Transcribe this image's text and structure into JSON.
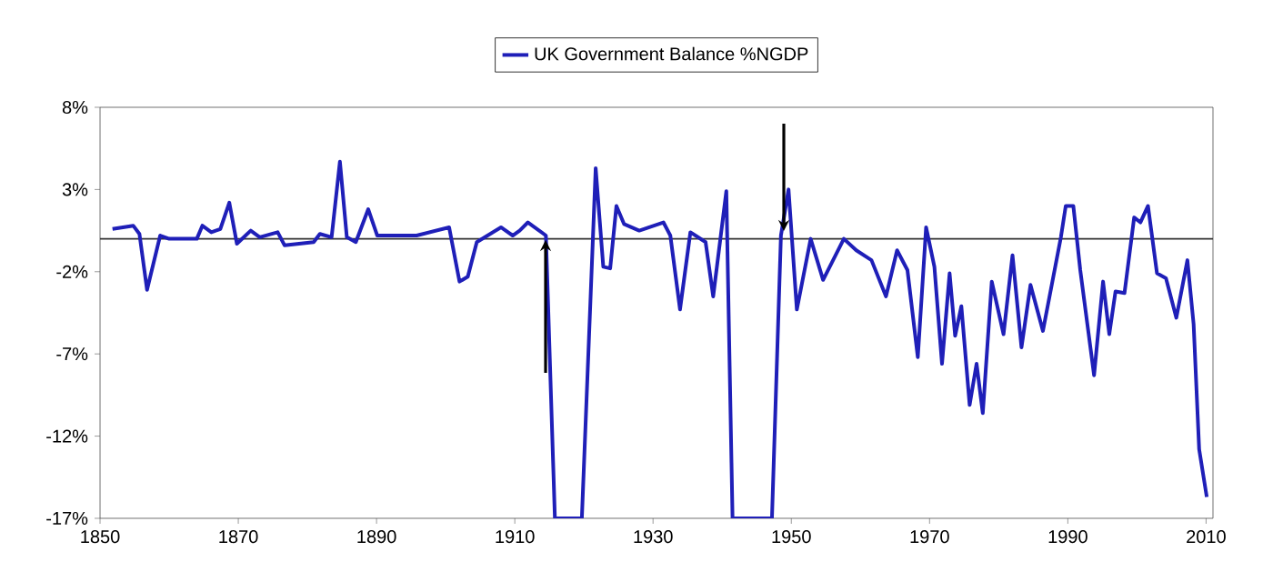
{
  "chart_data": {
    "type": "line",
    "x": [
      1851.8,
      1854.8,
      1855.7,
      1856.8,
      1858.7,
      1860,
      1864,
      1864.8,
      1866.1,
      1867.4,
      1868.7,
      1869.8,
      1871.8,
      1873.1,
      1875.7,
      1876.7,
      1878.8,
      1880.9,
      1881.8,
      1883.5,
      1884.7,
      1885.7,
      1887,
      1888.8,
      1890.1,
      1895.8,
      1900.5,
      1902,
      1903.2,
      1904.5,
      1908,
      1909.7,
      1910.7,
      1911.9,
      1914.5,
      1915.8,
      1919.7,
      1921.7,
      1922.8,
      1923.8,
      1924.7,
      1925.8,
      1928,
      1931.5,
      1932.5,
      1933.9,
      1935.4,
      1937.6,
      1938.7,
      1940.6,
      1941.5,
      1941.9,
      1947.2,
      1948.5,
      1949.6,
      1950.8,
      1952.8,
      1954.6,
      1957.6,
      1959.4,
      1961.6,
      1963.7,
      1965.3,
      1966.8,
      1968.3,
      1969.5,
      1970.7,
      1971.8,
      1972.9,
      1973.7,
      1974.6,
      1975.8,
      1976.8,
      1977.7,
      1979,
      1980.7,
      1982,
      1983.3,
      1984.6,
      1986.4,
      1989,
      1989.7,
      1990.8,
      1991.8,
      1993.8,
      1995.1,
      1996,
      1996.9,
      1998.2,
      1999.6,
      2000.5,
      2001.6,
      2002.9,
      2004.2,
      2005.7,
      2007.3,
      2008.2,
      2009,
      2010.1
    ],
    "series": [
      {
        "name": "UK Government Balance %NGDP",
        "color": "#1f1fb8",
        "values": [
          0.6,
          0.8,
          0.3,
          -3.1,
          0.2,
          0,
          0,
          0.8,
          0.4,
          0.6,
          2.2,
          -0.3,
          0.5,
          0.1,
          0.4,
          -0.4,
          -0.3,
          -0.2,
          0.3,
          0.1,
          4.7,
          0.1,
          -0.2,
          1.8,
          0.2,
          0.2,
          0.7,
          -2.6,
          -2.3,
          -0.2,
          0.7,
          0.2,
          0.5,
          1.0,
          0.2,
          -17,
          -17,
          4.3,
          -1.7,
          -1.8,
          2.0,
          0.9,
          0.5,
          1.0,
          0.2,
          -4.3,
          0.4,
          -0.2,
          -3.5,
          2.9,
          -17,
          -17,
          -17,
          0.2,
          3.0,
          -4.3,
          0,
          -2.5,
          0,
          -0.7,
          -1.3,
          -3.5,
          -0.7,
          -1.9,
          -7.2,
          0.7,
          -1.7,
          -7.6,
          -2.1,
          -5.9,
          -4.1,
          -10.1,
          -7.6,
          -10.6,
          -2.6,
          -5.8,
          -1.0,
          -6.6,
          -2.8,
          -5.6,
          0.1,
          2.0,
          2.0,
          -1.9,
          -8.3,
          -2.6,
          -5.8,
          -3.2,
          -3.3,
          1.3,
          1.0,
          2.0,
          -2.1,
          -2.4,
          -4.8,
          -1.3,
          -5.2,
          -12.8,
          -15.7
        ]
      }
    ],
    "xlim": [
      1850,
      2011
    ],
    "xticks": [
      1850,
      1870,
      1890,
      1910,
      1930,
      1950,
      1970,
      1990,
      2010
    ],
    "ylim": [
      -17,
      8
    ],
    "yticks": [
      {
        "value": 8,
        "label": "8%"
      },
      {
        "value": 3,
        "label": "3%"
      },
      {
        "value": -2,
        "label": "-2%"
      },
      {
        "value": -7,
        "label": "-7%"
      },
      {
        "value": -12,
        "label": "-12%"
      },
      {
        "value": -17,
        "label": "-17%"
      }
    ],
    "ref_lines": [
      {
        "axis": "y",
        "value": 0,
        "color": "#333333"
      }
    ],
    "legend": "top",
    "grid": false,
    "marker": "none",
    "line_style": "solid"
  }
}
